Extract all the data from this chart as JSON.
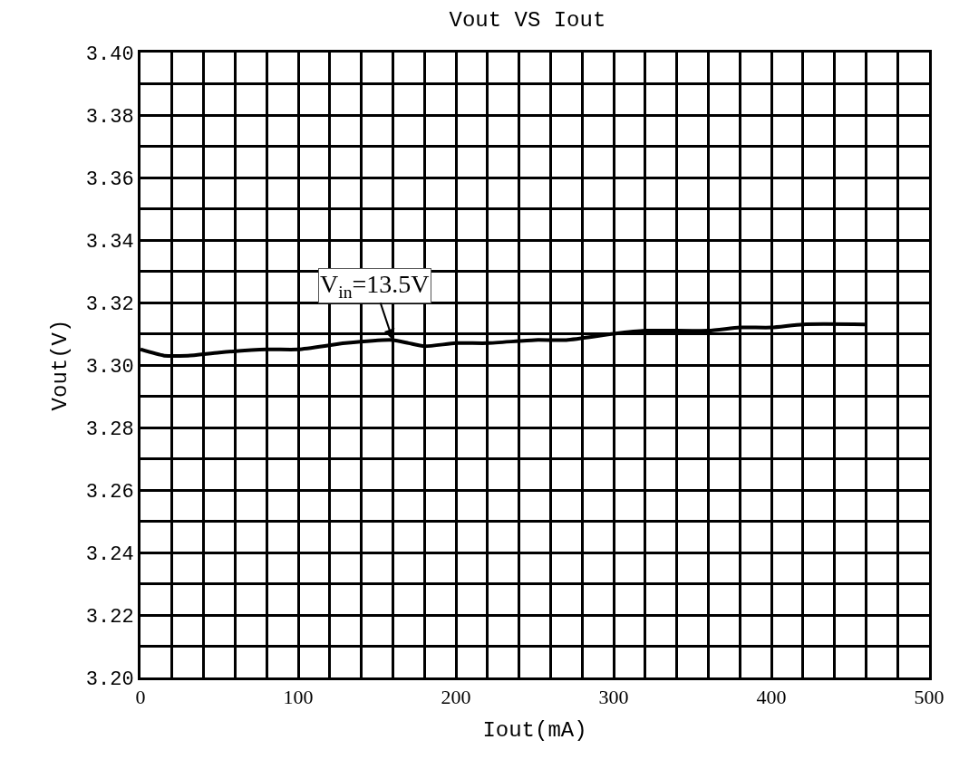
{
  "chart_data": {
    "type": "line",
    "title": "Vout VS Iout",
    "xlabel": "Iout(mA)",
    "ylabel": "Vout(V)",
    "x": [
      0,
      15,
      30,
      50,
      80,
      100,
      130,
      160,
      170,
      180,
      200,
      220,
      250,
      270,
      300,
      320,
      360,
      380,
      400,
      420,
      460
    ],
    "series": [
      {
        "color": "#000000",
        "values": [
          3.305,
          3.303,
          3.303,
          3.304,
          3.305,
          3.305,
          3.307,
          3.308,
          3.307,
          3.306,
          3.307,
          3.307,
          3.308,
          3.308,
          3.31,
          3.311,
          3.311,
          3.312,
          3.312,
          3.313,
          3.313
        ]
      }
    ],
    "annotations": [
      {
        "text": "V$_{in}$=13.5V",
        "x": 160,
        "y": 3.308
      }
    ],
    "xlim": [
      0,
      500
    ],
    "ylim": [
      3.2,
      3.4
    ],
    "xticks": [
      0,
      {
        "value": 20,
        "label": null
      },
      {
        "value": 40,
        "label": null
      },
      {
        "value": 60,
        "label": null
      },
      {
        "value": 80,
        "label": null
      },
      100,
      {
        "value": 120,
        "label": null
      },
      {
        "value": 140,
        "label": null
      },
      {
        "value": 160,
        "label": null
      },
      {
        "value": 180,
        "label": null
      },
      200,
      {
        "value": 220,
        "label": null
      },
      {
        "value": 240,
        "label": null
      },
      {
        "value": 260,
        "label": null
      },
      {
        "value": 280,
        "label": null
      },
      300,
      {
        "value": 320,
        "label": null
      },
      {
        "value": 340,
        "label": null
      },
      {
        "value": 360,
        "label": null
      },
      {
        "value": 380,
        "label": null
      },
      400,
      {
        "value": 420,
        "label": null
      },
      {
        "value": 440,
        "label": null
      },
      {
        "value": 460,
        "label": null
      },
      {
        "value": 480,
        "label": null
      },
      500
    ],
    "yticks": [
      {
        "value": 3.2,
        "label": "3.20"
      },
      {
        "value": 3.21,
        "label": null
      },
      {
        "value": 3.22,
        "label": "3.22"
      },
      {
        "value": 3.23,
        "label": null
      },
      {
        "value": 3.24,
        "label": "3.24"
      },
      {
        "value": 3.25,
        "label": null
      },
      {
        "value": 3.26,
        "label": "3.26"
      },
      {
        "value": 3.27,
        "label": null
      },
      {
        "value": 3.28,
        "label": "3.28"
      },
      {
        "value": 3.29,
        "label": null
      },
      {
        "value": 3.3,
        "label": "3.30"
      },
      {
        "value": 3.31,
        "label": null
      },
      {
        "value": 3.32,
        "label": "3.32"
      },
      {
        "value": 3.33,
        "label": null
      },
      {
        "value": 3.34,
        "label": "3.34"
      },
      {
        "value": 3.35,
        "label": null
      },
      {
        "value": 3.36,
        "label": "3.36"
      },
      {
        "value": 3.37,
        "label": null
      },
      {
        "value": 3.38,
        "label": "3.38"
      },
      {
        "value": 3.39,
        "label": null
      },
      {
        "value": 3.4,
        "label": "3.40"
      }
    ],
    "grid": true,
    "marker": "none",
    "line_style": "solid"
  }
}
